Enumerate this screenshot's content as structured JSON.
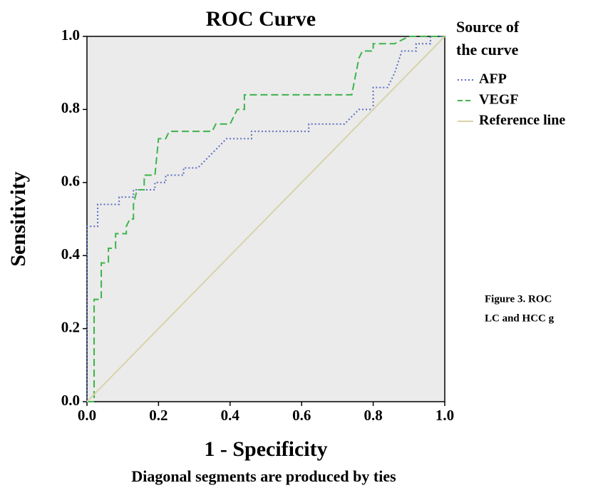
{
  "chart_data": {
    "type": "line",
    "title": "ROC Curve",
    "x_label": "1 - Specificity",
    "y_label": "Sensitivity",
    "footnote": "Diagonal segments are produced by ties",
    "legend_title": [
      "Source of",
      "the curve"
    ],
    "legend_position": "right",
    "annotations": [
      "Figure 3. ROC",
      "LC and HCC g"
    ],
    "xlim": [
      0,
      1
    ],
    "ylim": [
      0,
      1
    ],
    "xticks": [
      {
        "value": 0,
        "label": "0.0"
      },
      0.2,
      0.4,
      0.6,
      0.8,
      {
        "value": 1,
        "label": "1.0"
      }
    ],
    "yticks": [
      {
        "value": 0,
        "label": "0.0"
      },
      0.2,
      0.4,
      0.6,
      0.8,
      {
        "value": 1,
        "label": "1.0"
      }
    ],
    "series": [
      {
        "name": "AFP",
        "color": "#5b6fc4",
        "dash": "2,3",
        "x": [
          0,
          0,
          0.03,
          0.03,
          0.09,
          0.09,
          0.13,
          0.13,
          0.19,
          0.19,
          0.22,
          0.22,
          0.27,
          0.27,
          0.31,
          0.33,
          0.35,
          0.37,
          0.39,
          0.46,
          0.46,
          0.62,
          0.62,
          0.72,
          0.76,
          0.8,
          0.8,
          0.84,
          0.86,
          0.88,
          0.92,
          0.92,
          0.96,
          0.96,
          1
        ],
        "values": [
          0,
          0.48,
          0.48,
          0.54,
          0.54,
          0.56,
          0.56,
          0.58,
          0.58,
          0.6,
          0.6,
          0.62,
          0.62,
          0.64,
          0.64,
          0.66,
          0.68,
          0.7,
          0.72,
          0.72,
          0.74,
          0.74,
          0.76,
          0.76,
          0.8,
          0.8,
          0.86,
          0.86,
          0.9,
          0.96,
          0.96,
          0.98,
          0.98,
          1,
          1
        ]
      },
      {
        "name": "VEGF",
        "color": "#3cb44b",
        "dash": "10,5",
        "x": [
          0,
          0.02,
          0.02,
          0.04,
          0.04,
          0.06,
          0.06,
          0.08,
          0.08,
          0.11,
          0.11,
          0.12,
          0.13,
          0.13,
          0.14,
          0.16,
          0.16,
          0.19,
          0.2,
          0.22,
          0.23,
          0.35,
          0.36,
          0.4,
          0.42,
          0.44,
          0.44,
          0.74,
          0.76,
          0.77,
          0.8,
          0.8,
          0.86,
          0.9,
          1
        ],
        "values": [
          0,
          0,
          0.28,
          0.28,
          0.38,
          0.38,
          0.42,
          0.42,
          0.46,
          0.46,
          0.48,
          0.5,
          0.5,
          0.54,
          0.58,
          0.58,
          0.62,
          0.62,
          0.72,
          0.72,
          0.74,
          0.74,
          0.76,
          0.76,
          0.8,
          0.8,
          0.84,
          0.84,
          0.94,
          0.96,
          0.96,
          0.98,
          0.98,
          1,
          1
        ]
      },
      {
        "name": "Reference line",
        "color": "#d8d4a8",
        "dash": "none",
        "x": [
          0,
          1
        ],
        "values": [
          0,
          1
        ]
      }
    ]
  }
}
